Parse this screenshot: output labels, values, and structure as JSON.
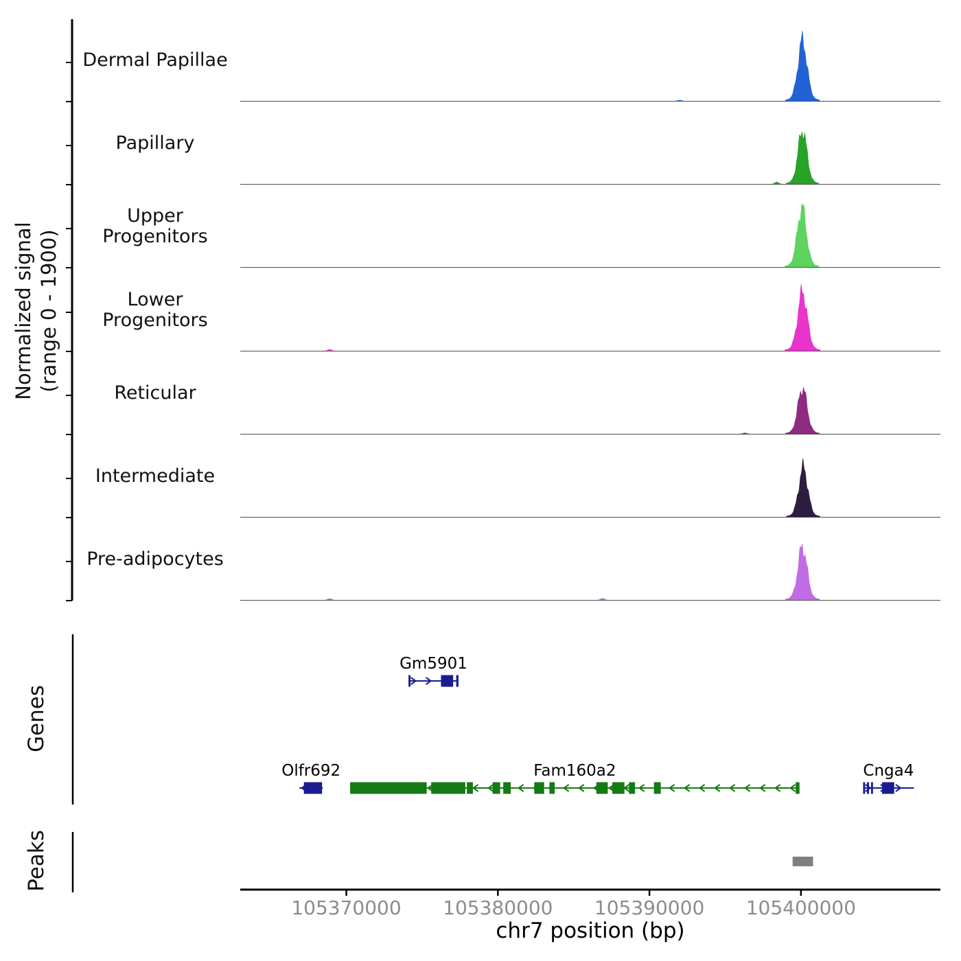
{
  "signal_axis": {
    "ylabel_line1": "Normalized signal",
    "ylabel_line2": "(range 0 - 1900)"
  },
  "sections": {
    "genes_label": "Genes",
    "peaks_label": "Peaks"
  },
  "x_axis": {
    "label": "chr7 position (bp)",
    "tick_labels": [
      "105370000",
      "105380000",
      "105390000",
      "105400000"
    ],
    "tick_color": "#8c8c8c",
    "axis_color": "#000000"
  },
  "chart_data": {
    "type": "area",
    "title": "",
    "xlabel": "chr7 position (bp)",
    "ylabel": "Normalized signal (range 0 - 1900)",
    "chromosome": "chr7",
    "x_range_bp": [
      105363000,
      105409200
    ],
    "x_ticks": [
      105370000,
      105380000,
      105390000,
      105400000
    ],
    "ylim": [
      0,
      1900
    ],
    "legend": "none",
    "grid": false,
    "tracks": [
      {
        "label": "Dermal Papillae",
        "color": "#2163d4",
        "peak_center_bp": 105400100,
        "peak_sigma_bp": 300,
        "peak_value": 1900,
        "bumps": [
          [
            105392000,
            25
          ]
        ]
      },
      {
        "label": "Papillary",
        "color": "#27a327",
        "peak_center_bp": 105400100,
        "peak_sigma_bp": 290,
        "peak_value": 1700,
        "bumps": [
          [
            105398400,
            60
          ]
        ]
      },
      {
        "label": "Upper Progenitors",
        "color": "#5ed35e",
        "peak_center_bp": 105400060,
        "peak_sigma_bp": 300,
        "peak_value": 1880,
        "bumps": []
      },
      {
        "label": "Lower Progenitors",
        "color": "#ea33cd",
        "peak_center_bp": 105400100,
        "peak_sigma_bp": 310,
        "peak_value": 1860,
        "bumps": [
          [
            105368900,
            40
          ]
        ]
      },
      {
        "label": "Reticular",
        "color": "#8e2a80",
        "peak_center_bp": 105400100,
        "peak_sigma_bp": 300,
        "peak_value": 1450,
        "bumps": [
          [
            105396300,
            30
          ]
        ]
      },
      {
        "label": "Intermediate",
        "color": "#2e1d41",
        "peak_center_bp": 105400150,
        "peak_sigma_bp": 295,
        "peak_value": 1560,
        "bumps": []
      },
      {
        "label": "Pre-adipocytes",
        "color": "#c06ce4",
        "peak_center_bp": 105400100,
        "peak_sigma_bp": 300,
        "peak_value": 1680,
        "bumps": [
          [
            105368900,
            45
          ],
          [
            105386900,
            50
          ]
        ]
      }
    ],
    "genes": [
      {
        "name": "Gm5901",
        "color": "#1c1c90",
        "strand": "+",
        "row": 0,
        "start": 105374100,
        "end": 105377400,
        "exons": [
          [
            105374100,
            105374230
          ],
          [
            105376250,
            105377050
          ],
          [
            105377250,
            105377400
          ]
        ]
      },
      {
        "name": "Olfr692",
        "color": "#1c1c90",
        "strand": "-",
        "row": 1,
        "start": 105366900,
        "end": 105368450,
        "exons": [
          [
            105367200,
            105368400
          ]
        ]
      },
      {
        "name": "Fam160a2",
        "color": "#157a15",
        "strand": "-",
        "row": 1,
        "start": 105370250,
        "end": 105399900,
        "exons": [
          [
            105370250,
            105375300
          ],
          [
            105375600,
            105377850
          ],
          [
            105377950,
            105378350
          ],
          [
            105379650,
            105380150
          ],
          [
            105380350,
            105380850
          ],
          [
            105382400,
            105383050
          ],
          [
            105383400,
            105383750
          ],
          [
            105386500,
            105387250
          ],
          [
            105387550,
            105388350
          ],
          [
            105388650,
            105389050
          ],
          [
            105390300,
            105390750
          ],
          [
            105399650,
            105399900
          ]
        ]
      },
      {
        "name": "Cnga4",
        "color": "#1c1c90",
        "strand": "+",
        "row": 1,
        "start": 105404100,
        "end": 105407450,
        "exons": [
          [
            105404100,
            105404230
          ],
          [
            105404360,
            105404490
          ],
          [
            105404620,
            105404750
          ],
          [
            105405350,
            105406150
          ]
        ]
      }
    ],
    "peak_regions": [
      {
        "start": 105399450,
        "end": 105400800,
        "color": "#7f7f7f"
      }
    ]
  }
}
